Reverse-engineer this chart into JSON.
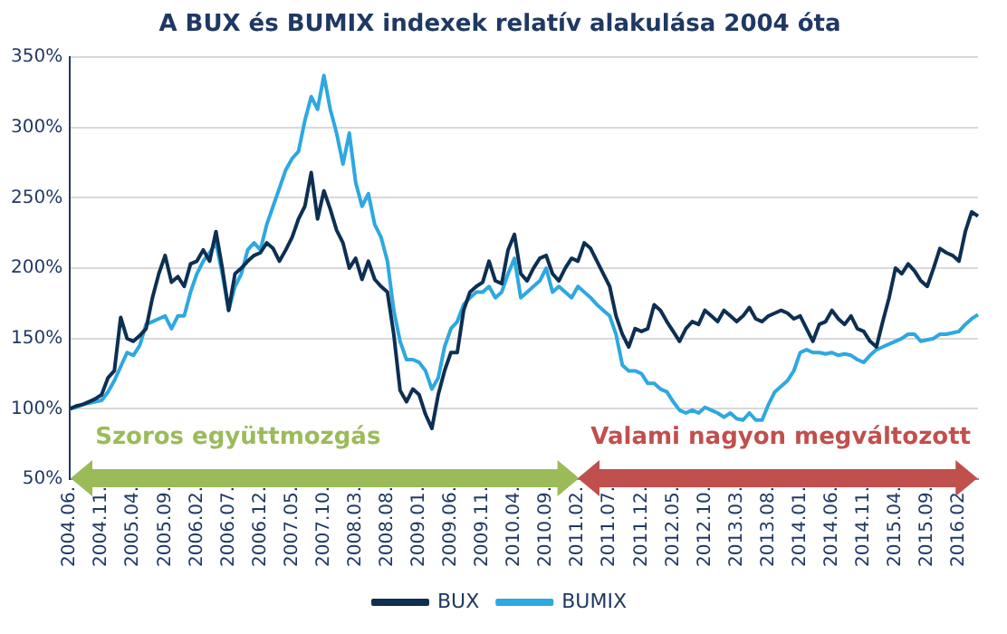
{
  "chart_data": {
    "type": "line",
    "title": "A BUX és BUMIX indexek relatív alakulása 2004 óta",
    "categories": [
      "2004.06.",
      null,
      null,
      null,
      null,
      "2004.11.",
      null,
      null,
      null,
      null,
      "2005.04.",
      null,
      null,
      null,
      null,
      "2005.09.",
      null,
      null,
      null,
      null,
      "2006.02.",
      null,
      null,
      null,
      null,
      "2006.07.",
      null,
      null,
      null,
      null,
      "2006.12.",
      null,
      null,
      null,
      null,
      "2007.05.",
      null,
      null,
      null,
      null,
      "2007.10.",
      null,
      null,
      null,
      null,
      "2008.03.",
      null,
      null,
      null,
      null,
      "2008.08.",
      null,
      null,
      null,
      null,
      "2009.01.",
      null,
      null,
      null,
      null,
      "2009.06.",
      null,
      null,
      null,
      null,
      "2009.11.",
      null,
      null,
      null,
      null,
      "2010.04.",
      null,
      null,
      null,
      null,
      "2010.09.",
      null,
      null,
      null,
      null,
      "2011.02.",
      null,
      null,
      null,
      null,
      "2011.07.",
      null,
      null,
      null,
      null,
      "2011.12.",
      null,
      null,
      null,
      null,
      "2012.05.",
      null,
      null,
      null,
      null,
      "2012.10.",
      null,
      null,
      null,
      null,
      "2013.03.",
      null,
      null,
      null,
      null,
      "2013.08.",
      null,
      null,
      null,
      null,
      "2014.01.",
      null,
      null,
      null,
      null,
      "2014.06.",
      null,
      null,
      null,
      null,
      "2014.11.",
      null,
      null,
      null,
      null,
      "2015.04.",
      null,
      null,
      null,
      null,
      "2015.09.",
      null,
      null,
      null,
      null,
      "2016.02.",
      null,
      null,
      null
    ],
    "series": [
      {
        "name": "BUX",
        "color": "#0d2f52",
        "values": [
          100,
          102,
          103,
          105,
          107,
          110,
          122,
          127,
          165,
          150,
          148,
          152,
          157,
          179,
          196,
          209,
          190,
          194,
          187,
          203,
          205,
          213,
          205,
          226,
          200,
          170,
          196,
          200,
          205,
          209,
          211,
          218,
          214,
          205,
          213,
          222,
          235,
          244,
          268,
          235,
          255,
          242,
          227,
          218,
          200,
          207,
          192,
          205,
          192,
          187,
          183,
          153,
          113,
          105,
          114,
          110,
          96,
          86,
          110,
          127,
          140,
          140,
          170,
          183,
          187,
          190,
          205,
          191,
          189,
          213,
          224,
          196,
          191,
          200,
          207,
          209,
          196,
          191,
          200,
          207,
          205,
          218,
          214,
          205,
          196,
          187,
          166,
          153,
          144,
          157,
          155,
          157,
          174,
          170,
          162,
          155,
          148,
          157,
          162,
          160,
          170,
          166,
          162,
          170,
          166,
          162,
          166,
          172,
          164,
          162,
          166,
          168,
          170,
          168,
          164,
          166,
          157,
          148,
          160,
          162,
          170,
          164,
          160,
          166,
          157,
          155,
          148,
          144,
          162,
          179,
          200,
          196,
          203,
          198,
          191,
          187,
          200,
          214,
          211,
          209,
          205,
          226,
          240,
          237
        ]
      },
      {
        "name": "BUMIX",
        "color": "#2ea8e0",
        "values": [
          100,
          101,
          103,
          104,
          105,
          106,
          112,
          120,
          130,
          140,
          138,
          145,
          160,
          162,
          164,
          166,
          157,
          166,
          166,
          183,
          196,
          205,
          211,
          218,
          196,
          170,
          187,
          196,
          213,
          218,
          213,
          231,
          244,
          257,
          270,
          278,
          283,
          305,
          322,
          313,
          337,
          313,
          296,
          274,
          296,
          261,
          244,
          253,
          231,
          222,
          205,
          170,
          148,
          135,
          135,
          133,
          127,
          114,
          122,
          144,
          157,
          162,
          174,
          179,
          183,
          183,
          187,
          179,
          183,
          196,
          207,
          179,
          183,
          187,
          191,
          200,
          183,
          187,
          183,
          179,
          187,
          183,
          179,
          174,
          170,
          166,
          153,
          131,
          127,
          127,
          125,
          118,
          118,
          114,
          112,
          105,
          99,
          97,
          99,
          97,
          101,
          99,
          97,
          94,
          97,
          93,
          92,
          97,
          92,
          92,
          103,
          112,
          116,
          120,
          127,
          140,
          142,
          140,
          140,
          139,
          140,
          138,
          139,
          138,
          135,
          133,
          138,
          142,
          144,
          146,
          148,
          150,
          153,
          153,
          148,
          149,
          150,
          153,
          153,
          154,
          155,
          160,
          164,
          167
        ]
      }
    ],
    "ylim": [
      50,
      350
    ],
    "yticks": [
      {
        "value": 50,
        "label": "50%"
      },
      {
        "value": 100,
        "label": "100%"
      },
      {
        "value": 150,
        "label": "150%"
      },
      {
        "value": 200,
        "label": "200%"
      },
      {
        "value": 250,
        "label": "250%"
      },
      {
        "value": 300,
        "label": "300%"
      },
      {
        "value": 350,
        "label": "350%"
      }
    ],
    "grid": "y",
    "legend": "bottom",
    "marker": "none",
    "line_style": "solid",
    "annotations": [
      "Szoros együttmozgás",
      "Valami nagyon megváltozott"
    ]
  }
}
